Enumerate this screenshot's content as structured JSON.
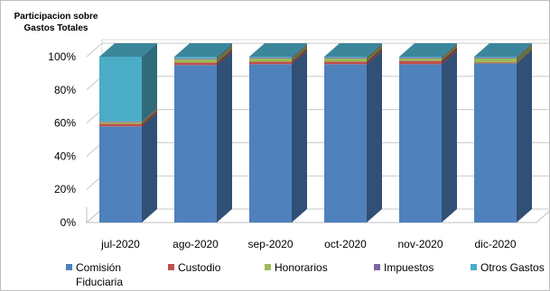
{
  "chart_data": {
    "type": "bar",
    "stacked": true,
    "percent": true,
    "three_d": true,
    "title": "Participacion sobre Gastos Totales",
    "categories": [
      "jul-2020",
      "ago-2020",
      "sep-2020",
      "oct-2020",
      "nov-2020",
      "dic-2020"
    ],
    "y_ticks": [
      "0%",
      "20%",
      "40%",
      "60%",
      "80%",
      "100%"
    ],
    "ylim": [
      0,
      100
    ],
    "grid": true,
    "legend_position": "bottom",
    "series": [
      {
        "name": "Comisión Fiduciaria",
        "color": "#4f81bd",
        "values": [
          58,
          95,
          95.5,
          95.5,
          95.5,
          96
        ]
      },
      {
        "name": "Custodio",
        "color": "#c0504d",
        "values": [
          1.5,
          1.5,
          1.5,
          1.5,
          2,
          0.5
        ]
      },
      {
        "name": "Honorarios",
        "color": "#9bbb59",
        "values": [
          1,
          2,
          2,
          2,
          1.5,
          2.5
        ]
      },
      {
        "name": "Impuestos",
        "color": "#8064a2",
        "values": [
          0.5,
          0.5,
          0.5,
          0.5,
          0.5,
          0.5
        ]
      },
      {
        "name": "Otros Gastos",
        "color": "#4bacc6",
        "values": [
          39,
          1,
          0.5,
          0.5,
          0.5,
          0.5
        ]
      }
    ]
  }
}
